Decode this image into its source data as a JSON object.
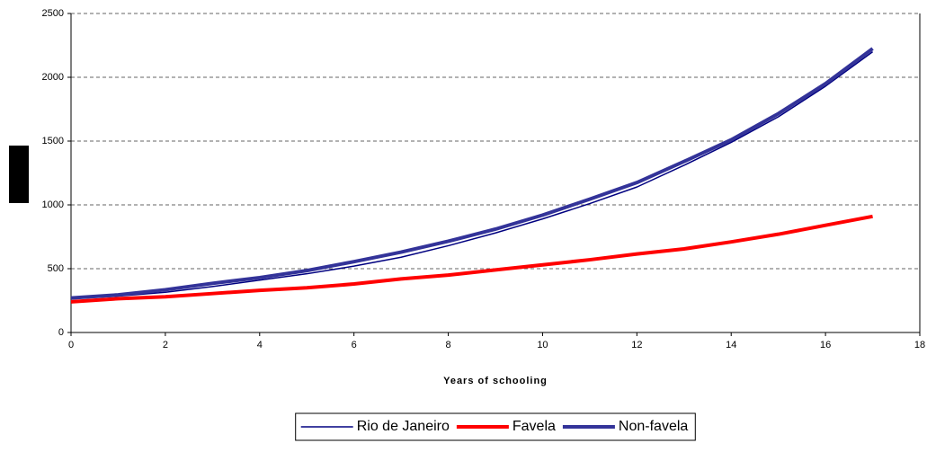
{
  "chart_data": {
    "type": "line",
    "x_label": "Years of schooling",
    "x": [
      0,
      1,
      2,
      3,
      4,
      5,
      6,
      7,
      8,
      9,
      10,
      11,
      12,
      13,
      14,
      15,
      16,
      17
    ],
    "series": [
      {
        "name": "Rio de Janeiro",
        "color": "#000080",
        "values": [
          265,
          285,
          315,
          360,
          410,
          460,
          520,
          590,
          680,
          780,
          890,
          1010,
          1140,
          1310,
          1490,
          1690,
          1930,
          2200
        ]
      },
      {
        "name": "Favela",
        "color": "#ff0000",
        "values": [
          240,
          265,
          280,
          305,
          330,
          350,
          380,
          420,
          450,
          490,
          530,
          570,
          615,
          655,
          710,
          770,
          840,
          910
        ]
      },
      {
        "name": "Non-favela",
        "color": "#333399",
        "values": [
          270,
          295,
          335,
          385,
          430,
          485,
          555,
          630,
          715,
          810,
          920,
          1045,
          1175,
          1340,
          1510,
          1715,
          1950,
          2225
        ]
      }
    ],
    "xlim": [
      0,
      18
    ],
    "xticks": [
      0,
      2,
      4,
      6,
      8,
      10,
      12,
      14,
      16,
      18
    ],
    "ylim": [
      0,
      2500
    ],
    "yticks": [
      0,
      500,
      1000,
      1500,
      2000,
      2500
    ],
    "grid": true,
    "legend": "bottom"
  }
}
